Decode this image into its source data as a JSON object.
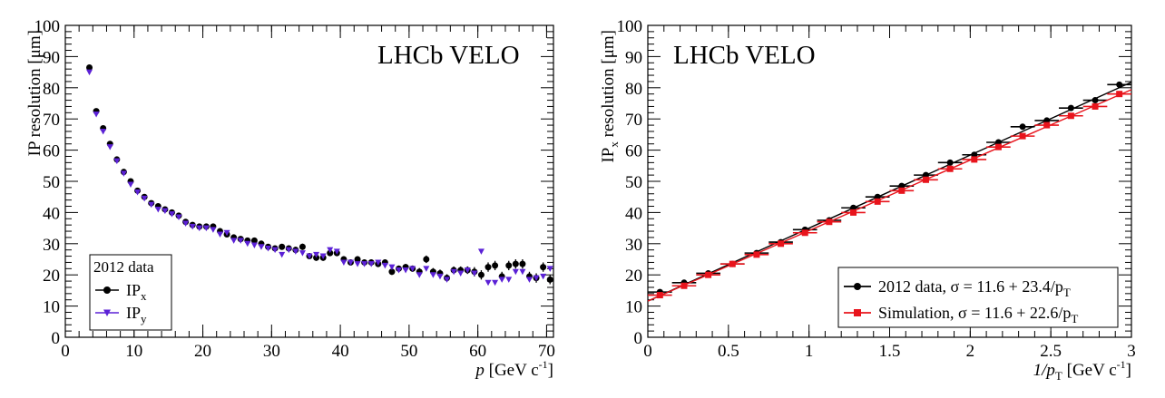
{
  "chart_data": [
    {
      "type": "scatter",
      "watermark": "LHCb VELO",
      "xlabel": "p",
      "xlabel_unit": "[GeV c",
      "xlabel_unit_sup": "-1",
      "xlabel_close": "]",
      "ylabel": "IP resolution [μm]",
      "xlim": [
        0,
        71
      ],
      "ylim": [
        0,
        100
      ],
      "xticks": [
        "0",
        "10",
        "20",
        "30",
        "40",
        "50",
        "60",
        "70"
      ],
      "yticks": [
        "0",
        "10",
        "20",
        "30",
        "40",
        "50",
        "60",
        "70",
        "80",
        "90",
        "100"
      ],
      "grid": false,
      "legend": {
        "position": "bottom-left",
        "title": "2012 data",
        "entries": [
          {
            "label": "IP",
            "sub": "x",
            "color": "#000000",
            "marker": "circle"
          },
          {
            "label": "IP",
            "sub": "y",
            "color": "#5b21d6",
            "marker": "triangle-down"
          }
        ]
      },
      "series": [
        {
          "color": "#000000",
          "marker": "circle",
          "x": [
            3.5,
            4.5,
            5.5,
            6.5,
            7.5,
            8.5,
            9.5,
            10.5,
            11.5,
            12.5,
            13.5,
            14.5,
            15.5,
            16.5,
            17.5,
            18.5,
            19.5,
            20.5,
            21.5,
            22.5,
            23.5,
            24.5,
            25.5,
            26.5,
            27.5,
            28.5,
            29.5,
            30.5,
            31.5,
            32.5,
            33.5,
            34.5,
            35.5,
            36.5,
            37.5,
            38.5,
            39.5,
            40.5,
            41.5,
            42.5,
            43.5,
            44.5,
            45.5,
            46.5,
            47.5,
            48.5,
            49.5,
            50.5,
            51.5,
            52.5,
            53.5,
            54.5,
            55.5,
            56.5,
            57.5,
            58.5,
            59.5,
            60.5,
            61.5,
            62.5,
            63.5,
            64.5,
            65.5,
            66.5,
            67.5,
            68.5,
            69.5,
            70.5
          ],
          "y": [
            86.5,
            72.5,
            67,
            62,
            57,
            53,
            50,
            47,
            45,
            43,
            42,
            41,
            40,
            39,
            37,
            36,
            35.5,
            35.5,
            35.5,
            34,
            33,
            32,
            31.5,
            31,
            31,
            30,
            29,
            28.5,
            29,
            28.5,
            28,
            29,
            26,
            25.5,
            25.5,
            27,
            27,
            25,
            24,
            25,
            24,
            24,
            23.5,
            24,
            21,
            22,
            22.5,
            22,
            21,
            25,
            21,
            20.5,
            19,
            21.5,
            21.5,
            21.5,
            21,
            20,
            22.5,
            23,
            19.5,
            23,
            23.5,
            23.5,
            19.5,
            19,
            22.5,
            18.5
          ],
          "err": [
            0.8,
            0.8,
            0.8,
            0.8,
            0.8,
            0.8,
            0.8,
            0.8,
            0.8,
            0.8,
            0.8,
            0.8,
            0.8,
            0.8,
            0.8,
            0.8,
            0.8,
            0.8,
            0.8,
            0.8,
            0.8,
            0.8,
            0.8,
            0.8,
            0.8,
            0.8,
            0.8,
            0.8,
            0.8,
            1,
            1,
            1,
            1,
            1,
            1,
            1,
            1,
            1,
            1,
            1,
            1,
            1,
            1,
            1,
            1,
            1,
            1,
            1,
            1.2,
            1.2,
            1.2,
            1.2,
            1.2,
            1.2,
            1.2,
            1.2,
            1.5,
            1.5,
            1.5,
            1.5,
            1.5,
            1.5,
            1.5,
            1.5,
            1.5,
            1.5,
            1.5,
            1.5
          ]
        },
        {
          "color": "#5b21d6",
          "marker": "triangle-down",
          "x": [
            3.5,
            4.5,
            5.5,
            6.5,
            7.5,
            8.5,
            9.5,
            10.5,
            11.5,
            12.5,
            13.5,
            14.5,
            15.5,
            16.5,
            17.5,
            18.5,
            19.5,
            20.5,
            21.5,
            22.5,
            23.5,
            24.5,
            25.5,
            26.5,
            27.5,
            28.5,
            29.5,
            30.5,
            31.5,
            32.5,
            33.5,
            34.5,
            35.5,
            36.5,
            37.5,
            38.5,
            39.5,
            40.5,
            41.5,
            42.5,
            43.5,
            44.5,
            45.5,
            46.5,
            47.5,
            48.5,
            49.5,
            50.5,
            51.5,
            52.5,
            53.5,
            54.5,
            55.5,
            56.5,
            57.5,
            58.5,
            59.5,
            60.5,
            61.5,
            62.5,
            63.5,
            64.5,
            65.5,
            66.5,
            67.5,
            68.5,
            69.5,
            70.5
          ],
          "y": [
            85,
            71.5,
            66,
            61,
            56.5,
            52.5,
            49,
            46.5,
            44.5,
            42.5,
            41,
            40.5,
            39.5,
            38.5,
            36.5,
            35.5,
            35,
            35,
            34.5,
            33,
            33.5,
            31,
            31,
            30,
            29.5,
            29,
            28.5,
            28,
            26.5,
            28,
            27.5,
            27,
            26,
            26.5,
            26,
            28,
            27.5,
            24,
            24,
            23.5,
            23.5,
            23.5,
            24,
            23,
            22.5,
            21.5,
            21.5,
            22,
            20,
            22,
            20,
            19.5,
            18.5,
            21,
            20.5,
            21.5,
            20.5,
            27.5,
            17.5,
            17.5,
            18.5,
            18.5,
            21,
            21,
            18.5,
            19,
            19.5,
            22
          ]
        }
      ]
    },
    {
      "type": "line",
      "watermark": "LHCb VELO",
      "xlabel": "1/p",
      "xlabel_sub": "T",
      "xlabel_unit": "[GeV c",
      "xlabel_unit_sup": "-1",
      "xlabel_close": "]",
      "ylabel": "IP",
      "ylabel_sub": "x",
      "ylabel_rest": " resolution [μm]",
      "xlim": [
        0,
        3
      ],
      "ylim": [
        0,
        100
      ],
      "xticks": [
        "0",
        "0.5",
        "1",
        "1.5",
        "2",
        "2.5",
        "3"
      ],
      "yticks": [
        "0",
        "10",
        "20",
        "30",
        "40",
        "50",
        "60",
        "70",
        "80",
        "90",
        "100"
      ],
      "grid": false,
      "legend": {
        "position": "bottom-right",
        "entries": [
          {
            "text": "2012 data,  σ = 11.6 + 23.4/p",
            "sub": "T",
            "color": "#000000",
            "marker": "circle"
          },
          {
            "text": "Simulation, σ = 11.6 + 22.6/p",
            "sub": "T",
            "color": "#e8141c",
            "marker": "square"
          }
        ]
      },
      "series": [
        {
          "color": "#000000",
          "marker": "circle",
          "fit": [
            11.6,
            23.4
          ],
          "x": [
            0.075,
            0.225,
            0.375,
            0.525,
            0.675,
            0.825,
            0.975,
            1.125,
            1.275,
            1.425,
            1.575,
            1.725,
            1.875,
            2.025,
            2.175,
            2.325,
            2.475,
            2.625,
            2.775,
            2.925
          ],
          "y": [
            14.5,
            17.5,
            20.5,
            23.5,
            27,
            30.5,
            34.5,
            37.5,
            41.5,
            45,
            48.5,
            52,
            56,
            58.5,
            62.5,
            67.5,
            69.5,
            73.5,
            76,
            81
          ]
        },
        {
          "color": "#e8141c",
          "marker": "square",
          "fit": [
            11.6,
            22.6
          ],
          "x": [
            0.075,
            0.225,
            0.375,
            0.525,
            0.675,
            0.825,
            0.975,
            1.125,
            1.275,
            1.425,
            1.575,
            1.725,
            1.875,
            2.025,
            2.175,
            2.325,
            2.475,
            2.625,
            2.775,
            2.925
          ],
          "y": [
            13.5,
            16.5,
            20,
            23.5,
            26.5,
            30,
            33.5,
            37,
            40,
            43.5,
            47,
            50.5,
            54,
            57,
            61,
            64.5,
            68,
            71,
            74,
            78
          ]
        }
      ]
    }
  ]
}
